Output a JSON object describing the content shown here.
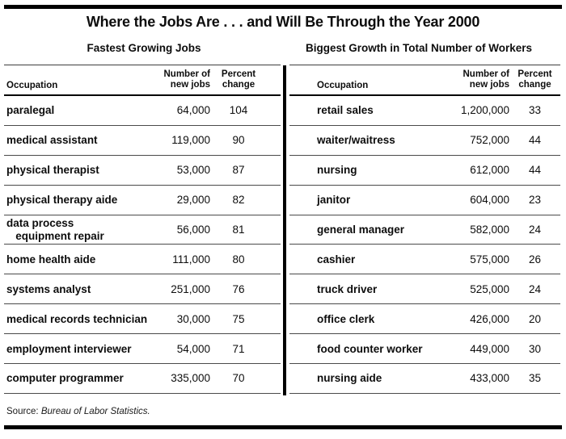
{
  "title": "Where the Jobs Are . . . and Will Be Through the Year 2000",
  "source": {
    "prefix": "Source:",
    "text": "Bureau of Labor Statistics."
  },
  "colors": {
    "ink": "#000000",
    "rule_thin": "#4a4a4a",
    "background": "#ffffff"
  },
  "tables": [
    {
      "subtitle": "Fastest Growing Jobs",
      "headers": {
        "occupation": "Occupation",
        "new_jobs": "Number of\nnew jobs",
        "percent": "Percent\nchange"
      },
      "rows": [
        {
          "occupation": "paralegal",
          "new_jobs": "64,000",
          "percent": "104"
        },
        {
          "occupation": "medical assistant",
          "new_jobs": "119,000",
          "percent": "90"
        },
        {
          "occupation": "physical therapist",
          "new_jobs": "53,000",
          "percent": "87"
        },
        {
          "occupation": "physical therapy aide",
          "new_jobs": "29,000",
          "percent": "82"
        },
        {
          "occupation": "data process\n   equipment repair",
          "new_jobs": "56,000",
          "percent": "81"
        },
        {
          "occupation": "home health aide",
          "new_jobs": "111,000",
          "percent": "80"
        },
        {
          "occupation": "systems analyst",
          "new_jobs": "251,000",
          "percent": "76"
        },
        {
          "occupation": "medical records technician",
          "new_jobs": "30,000",
          "percent": "75"
        },
        {
          "occupation": "employment interviewer",
          "new_jobs": "54,000",
          "percent": "71"
        },
        {
          "occupation": "computer programmer",
          "new_jobs": "335,000",
          "percent": "70"
        }
      ]
    },
    {
      "subtitle": "Biggest Growth in Total Number of Workers",
      "headers": {
        "occupation": "Occupation",
        "new_jobs": "Number of\nnew jobs",
        "percent": "Percent\nchange"
      },
      "rows": [
        {
          "occupation": "retail sales",
          "new_jobs": "1,200,000",
          "percent": "33"
        },
        {
          "occupation": "waiter/waitress",
          "new_jobs": "752,000",
          "percent": "44"
        },
        {
          "occupation": "nursing",
          "new_jobs": "612,000",
          "percent": "44"
        },
        {
          "occupation": "janitor",
          "new_jobs": "604,000",
          "percent": "23"
        },
        {
          "occupation": "general manager",
          "new_jobs": "582,000",
          "percent": "24"
        },
        {
          "occupation": "cashier",
          "new_jobs": "575,000",
          "percent": "26"
        },
        {
          "occupation": "truck driver",
          "new_jobs": "525,000",
          "percent": "24"
        },
        {
          "occupation": "office clerk",
          "new_jobs": "426,000",
          "percent": "20"
        },
        {
          "occupation": "food counter worker",
          "new_jobs": "449,000",
          "percent": "30"
        },
        {
          "occupation": "nursing aide",
          "new_jobs": "433,000",
          "percent": "35"
        }
      ]
    }
  ]
}
